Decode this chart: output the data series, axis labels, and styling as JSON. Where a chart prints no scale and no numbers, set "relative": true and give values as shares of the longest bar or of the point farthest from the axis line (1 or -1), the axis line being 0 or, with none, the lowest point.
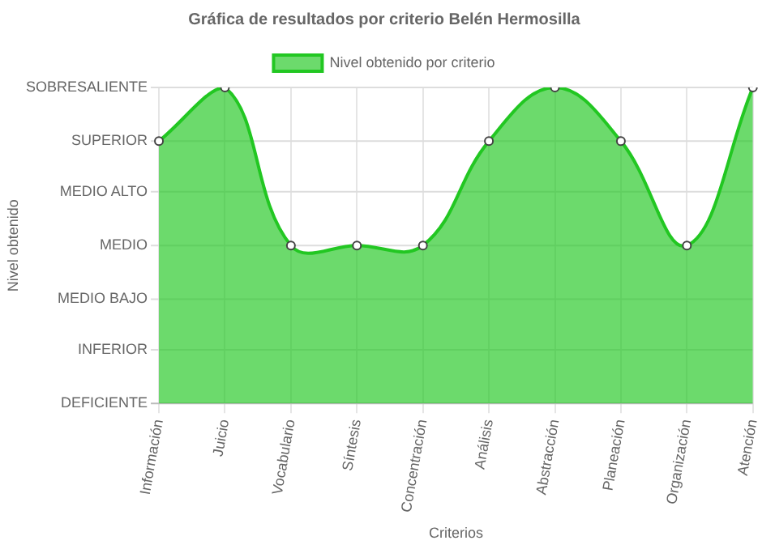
{
  "chart_data": {
    "type": "area",
    "title": "Gráfica de resultados por criterio Belén Hermosilla",
    "xlabel": "Criterios",
    "annotations": [
      "Nivel obtenido"
    ],
    "categories": [
      "Información",
      "Juicio",
      "Vocabulario",
      "Síntesis",
      "Concentración",
      "Análisis",
      "Abstracción",
      "Planeación",
      "Organización",
      "Atención"
    ],
    "relative": true,
    "series": [
      {
        "name": "Nivel obtenido por criterio",
        "color": "#22c722",
        "values": [
          0.83,
          1,
          0.5,
          0.5,
          0.5,
          0.83,
          1,
          0.83,
          0.5,
          1
        ]
      }
    ],
    "ref_lines": [
      {
        "axis": "y",
        "value": 0,
        "label": "DEFICIENTE",
        "color": "#bbbbbb"
      },
      {
        "axis": "y",
        "value": 0.17,
        "label": "INFERIOR",
        "color": "#dddddd"
      },
      {
        "axis": "y",
        "value": 0.33,
        "label": "MEDIO BAJO",
        "color": "#dddddd"
      },
      {
        "axis": "y",
        "value": 0.5,
        "label": "MEDIO",
        "color": "#dddddd"
      },
      {
        "axis": "y",
        "value": 0.67,
        "label": "MEDIO ALTO",
        "color": "#dddddd"
      },
      {
        "axis": "y",
        "value": 0.83,
        "label": "SUPERIOR",
        "color": "#dddddd"
      },
      {
        "axis": "y",
        "value": 1,
        "label": "SOBRESALIENTE",
        "color": "#dddddd"
      }
    ],
    "grid": "x",
    "legend": "top",
    "marker": "circle"
  }
}
